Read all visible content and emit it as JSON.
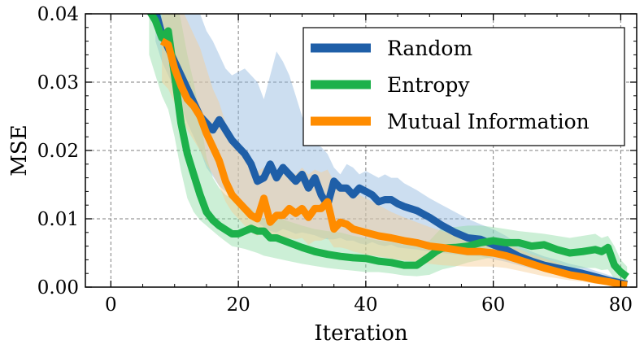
{
  "chart_data": {
    "type": "line",
    "title": "",
    "xlabel": "Iteration",
    "ylabel": "MSE",
    "xlim": [
      -4,
      82.5
    ],
    "ylim": [
      0.0,
      0.04
    ],
    "xticks": [
      0,
      20,
      40,
      60,
      80
    ],
    "xtick_labels": [
      "0",
      "20",
      "40",
      "60",
      "80"
    ],
    "yticks": [
      0.0,
      0.01,
      0.02,
      0.03,
      0.04
    ],
    "ytick_labels": [
      "0.00",
      "0.01",
      "0.02",
      "0.03",
      "0.04"
    ],
    "grid": true,
    "legend_position": "top-right",
    "series": [
      {
        "name": "Random",
        "color": "#1f5fa8",
        "band_color": "#8fb5dd",
        "x": [
          7,
          8,
          10,
          12,
          14,
          15,
          16,
          17,
          18,
          19,
          20,
          21,
          22,
          23,
          24,
          25,
          26,
          27,
          28,
          29,
          30,
          31,
          32,
          33,
          34,
          35,
          36,
          37,
          38,
          39,
          40,
          41,
          42,
          43,
          44,
          45,
          46,
          48,
          50,
          52,
          54,
          56,
          58,
          60,
          62,
          64,
          66,
          68,
          70,
          72,
          74,
          76,
          78,
          80,
          81
        ],
        "y": [
          0.0405,
          0.037,
          0.033,
          0.029,
          0.025,
          0.024,
          0.023,
          0.0245,
          0.023,
          0.0215,
          0.0205,
          0.0195,
          0.018,
          0.0155,
          0.016,
          0.018,
          0.016,
          0.0175,
          0.0165,
          0.0155,
          0.0165,
          0.0145,
          0.016,
          0.0135,
          0.012,
          0.0155,
          0.0145,
          0.0145,
          0.0135,
          0.0145,
          0.014,
          0.0135,
          0.0125,
          0.0128,
          0.0128,
          0.0122,
          0.0118,
          0.0112,
          0.0102,
          0.009,
          0.008,
          0.0072,
          0.007,
          0.0062,
          0.0055,
          0.0045,
          0.0038,
          0.0032,
          0.0028,
          0.0024,
          0.002,
          0.0015,
          0.001,
          0.0006,
          0.0004
        ],
        "upper": [
          0.048,
          0.046,
          0.044,
          0.042,
          0.04,
          0.0375,
          0.036,
          0.034,
          0.032,
          0.031,
          0.0315,
          0.032,
          0.031,
          0.03,
          0.0275,
          0.031,
          0.0345,
          0.033,
          0.031,
          0.028,
          0.025,
          0.023,
          0.021,
          0.0205,
          0.0195,
          0.0175,
          0.0165,
          0.018,
          0.0175,
          0.0165,
          0.017,
          0.0165,
          0.016,
          0.0165,
          0.016,
          0.016,
          0.0152,
          0.0142,
          0.013,
          0.012,
          0.011,
          0.01,
          0.0092,
          0.0085,
          0.0075,
          0.0062,
          0.0052,
          0.0045,
          0.004,
          0.0034,
          0.003,
          0.0024,
          0.0018,
          0.0012,
          0.0008
        ],
        "lower": [
          0.036,
          0.033,
          0.029,
          0.024,
          0.02,
          0.0175,
          0.0162,
          0.0148,
          0.014,
          0.0132,
          0.0125,
          0.0118,
          0.011,
          0.0095,
          0.0088,
          0.0082,
          0.008,
          0.0085,
          0.0082,
          0.0078,
          0.008,
          0.0078,
          0.0076,
          0.0072,
          0.007,
          0.007,
          0.0072,
          0.0068,
          0.0068,
          0.0064,
          0.0062,
          0.0066,
          0.0062,
          0.006,
          0.0062,
          0.0058,
          0.0057,
          0.0055,
          0.0052,
          0.005,
          0.0048,
          0.0046,
          0.0045,
          0.0041,
          0.0037,
          0.0032,
          0.0027,
          0.0023,
          0.002,
          0.0016,
          0.0012,
          0.0008,
          0.0005,
          0.0002,
          0.0001
        ]
      },
      {
        "name": "Entropy",
        "color": "#1db14b",
        "band_color": "#8fdca3",
        "x": [
          6,
          7,
          8,
          9,
          10,
          11,
          12,
          13,
          14,
          15,
          16,
          17,
          18,
          19,
          20,
          21,
          22,
          23,
          24,
          25,
          26,
          28,
          30,
          32,
          34,
          36,
          38,
          40,
          42,
          44,
          46,
          48,
          50,
          51,
          52,
          54,
          56,
          58,
          60,
          62,
          64,
          66,
          68,
          70,
          72,
          74,
          76,
          77,
          78,
          79,
          80,
          81
        ],
        "y": [
          0.0405,
          0.039,
          0.0365,
          0.0375,
          0.031,
          0.024,
          0.0195,
          0.0165,
          0.0135,
          0.011,
          0.0098,
          0.009,
          0.0084,
          0.0078,
          0.0078,
          0.0082,
          0.0086,
          0.0082,
          0.0082,
          0.0072,
          0.0072,
          0.0065,
          0.0058,
          0.0052,
          0.0048,
          0.0045,
          0.0043,
          0.0042,
          0.0038,
          0.0036,
          0.0032,
          0.0032,
          0.0045,
          0.0052,
          0.0057,
          0.0058,
          0.006,
          0.0065,
          0.0068,
          0.0065,
          0.0065,
          0.006,
          0.0062,
          0.0055,
          0.005,
          0.0052,
          0.0055,
          0.0052,
          0.0058,
          0.0032,
          0.0022,
          0.0015
        ],
        "upper": [
          0.048,
          0.047,
          0.046,
          0.045,
          0.043,
          0.039,
          0.034,
          0.03,
          0.025,
          0.019,
          0.016,
          0.0145,
          0.0135,
          0.013,
          0.0125,
          0.012,
          0.0115,
          0.0105,
          0.01,
          0.0102,
          0.0102,
          0.0096,
          0.009,
          0.0085,
          0.0082,
          0.008,
          0.0075,
          0.0072,
          0.0068,
          0.0066,
          0.0062,
          0.0062,
          0.0068,
          0.0078,
          0.0088,
          0.0088,
          0.009,
          0.009,
          0.0088,
          0.0085,
          0.0082,
          0.008,
          0.0078,
          0.0075,
          0.0072,
          0.0075,
          0.0078,
          0.0072,
          0.0075,
          0.006,
          0.004,
          0.003
        ],
        "lower": [
          0.034,
          0.031,
          0.028,
          0.026,
          0.022,
          0.017,
          0.013,
          0.011,
          0.0098,
          0.009,
          0.0082,
          0.0074,
          0.0067,
          0.006,
          0.0058,
          0.0056,
          0.0053,
          0.005,
          0.0046,
          0.0044,
          0.0042,
          0.0038,
          0.0034,
          0.0031,
          0.0028,
          0.0026,
          0.0024,
          0.0022,
          0.0022,
          0.002,
          0.0017,
          0.0016,
          0.0018,
          0.0022,
          0.0026,
          0.003,
          0.0036,
          0.004,
          0.0044,
          0.0043,
          0.004,
          0.0038,
          0.0036,
          0.0032,
          0.0028,
          0.0028,
          0.0028,
          0.0025,
          0.0026,
          0.0012,
          0.0006,
          0.0002
        ]
      },
      {
        "name": "Mutual Information",
        "color": "#ff8c00",
        "band_color": "#f7cd92",
        "x": [
          8,
          9,
          10,
          11,
          12,
          13,
          14,
          15,
          16,
          17,
          18,
          19,
          20,
          21,
          22,
          23,
          24,
          25,
          26,
          27,
          28,
          29,
          30,
          31,
          32,
          33,
          34,
          35,
          36,
          37,
          38,
          40,
          42,
          44,
          46,
          48,
          50,
          52,
          54,
          56,
          58,
          60,
          62,
          64,
          66,
          68,
          70,
          72,
          74,
          76,
          78,
          80,
          81
        ],
        "y": [
          0.036,
          0.0355,
          0.032,
          0.0295,
          0.0275,
          0.0265,
          0.025,
          0.0225,
          0.0205,
          0.0185,
          0.0155,
          0.0135,
          0.0125,
          0.0115,
          0.0105,
          0.01,
          0.013,
          0.0095,
          0.0105,
          0.0105,
          0.0115,
          0.0108,
          0.0115,
          0.0102,
          0.0115,
          0.0115,
          0.0125,
          0.0085,
          0.0095,
          0.0092,
          0.0085,
          0.008,
          0.0075,
          0.0072,
          0.0068,
          0.0065,
          0.006,
          0.0058,
          0.0055,
          0.0052,
          0.0052,
          0.005,
          0.0046,
          0.004,
          0.0034,
          0.0028,
          0.0023,
          0.0018,
          0.0015,
          0.0011,
          0.0008,
          0.0004,
          0.0003
        ],
        "upper": [
          0.046,
          0.045,
          0.043,
          0.041,
          0.039,
          0.037,
          0.035,
          0.032,
          0.029,
          0.027,
          0.024,
          0.022,
          0.02,
          0.019,
          0.0178,
          0.017,
          0.0175,
          0.017,
          0.016,
          0.0165,
          0.017,
          0.0165,
          0.0175,
          0.0165,
          0.0172,
          0.0168,
          0.0172,
          0.0155,
          0.0152,
          0.0148,
          0.014,
          0.013,
          0.012,
          0.011,
          0.0102,
          0.0095,
          0.0088,
          0.0082,
          0.0077,
          0.0072,
          0.007,
          0.0068,
          0.0063,
          0.0056,
          0.0048,
          0.0042,
          0.0036,
          0.0028,
          0.0024,
          0.0018,
          0.0013,
          0.0008,
          0.0006
        ],
        "lower": [
          0.03,
          0.029,
          0.027,
          0.025,
          0.023,
          0.0215,
          0.02,
          0.018,
          0.0165,
          0.0148,
          0.0125,
          0.011,
          0.01,
          0.009,
          0.008,
          0.0075,
          0.0085,
          0.007,
          0.0068,
          0.007,
          0.0072,
          0.007,
          0.0072,
          0.0062,
          0.0068,
          0.0068,
          0.0072,
          0.0058,
          0.0058,
          0.0056,
          0.0052,
          0.0048,
          0.0045,
          0.0042,
          0.0039,
          0.0037,
          0.0034,
          0.0032,
          0.0031,
          0.003,
          0.003,
          0.003,
          0.0028,
          0.0024,
          0.002,
          0.0016,
          0.0013,
          0.001,
          0.0008,
          0.0005,
          0.0003,
          0.0001,
          0.0001
        ]
      }
    ]
  }
}
